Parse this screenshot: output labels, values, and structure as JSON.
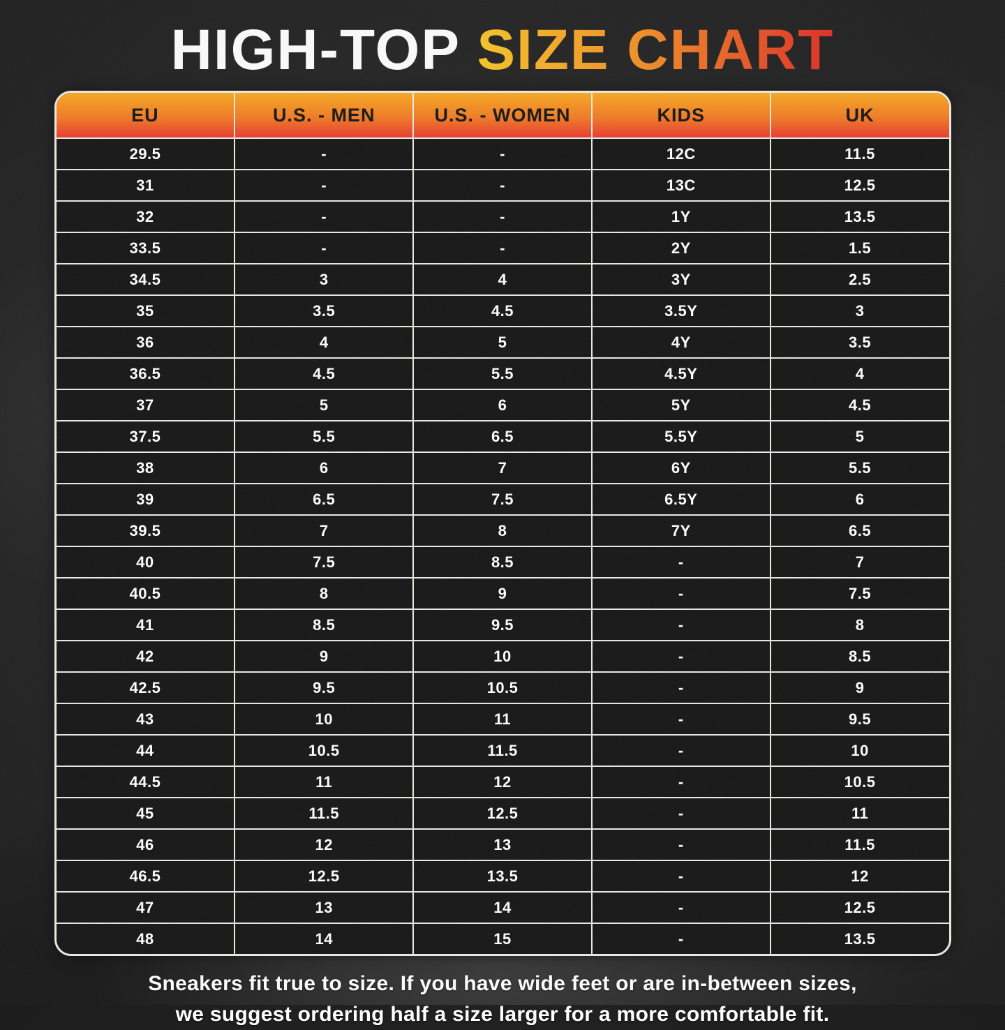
{
  "title": {
    "prefix": "HIGH-TOP ",
    "highlight": "SIZE CHART"
  },
  "table": {
    "columns": [
      "EU",
      "U.S. - MEN",
      "U.S. - WOMEN",
      "KIDS",
      "UK"
    ],
    "rows": [
      [
        "29.5",
        "-",
        "-",
        "12C",
        "11.5"
      ],
      [
        "31",
        "-",
        "-",
        "13C",
        "12.5"
      ],
      [
        "32",
        "-",
        "-",
        "1Y",
        "13.5"
      ],
      [
        "33.5",
        "-",
        "-",
        "2Y",
        "1.5"
      ],
      [
        "34.5",
        "3",
        "4",
        "3Y",
        "2.5"
      ],
      [
        "35",
        "3.5",
        "4.5",
        "3.5Y",
        "3"
      ],
      [
        "36",
        "4",
        "5",
        "4Y",
        "3.5"
      ],
      [
        "36.5",
        "4.5",
        "5.5",
        "4.5Y",
        "4"
      ],
      [
        "37",
        "5",
        "6",
        "5Y",
        "4.5"
      ],
      [
        "37.5",
        "5.5",
        "6.5",
        "5.5Y",
        "5"
      ],
      [
        "38",
        "6",
        "7",
        "6Y",
        "5.5"
      ],
      [
        "39",
        "6.5",
        "7.5",
        "6.5Y",
        "6"
      ],
      [
        "39.5",
        "7",
        "8",
        "7Y",
        "6.5"
      ],
      [
        "40",
        "7.5",
        "8.5",
        "-",
        "7"
      ],
      [
        "40.5",
        "8",
        "9",
        "-",
        "7.5"
      ],
      [
        "41",
        "8.5",
        "9.5",
        "-",
        "8"
      ],
      [
        "42",
        "9",
        "10",
        "-",
        "8.5"
      ],
      [
        "42.5",
        "9.5",
        "10.5",
        "-",
        "9"
      ],
      [
        "43",
        "10",
        "11",
        "-",
        "9.5"
      ],
      [
        "44",
        "10.5",
        "11.5",
        "-",
        "10"
      ],
      [
        "44.5",
        "11",
        "12",
        "-",
        "10.5"
      ],
      [
        "45",
        "11.5",
        "12.5",
        "-",
        "11"
      ],
      [
        "46",
        "12",
        "13",
        "-",
        "11.5"
      ],
      [
        "46.5",
        "12.5",
        "13.5",
        "-",
        "12"
      ],
      [
        "47",
        "13",
        "14",
        "-",
        "12.5"
      ],
      [
        "48",
        "14",
        "15",
        "-",
        "13.5"
      ]
    ]
  },
  "chart_data": {
    "type": "table",
    "title": "HIGH-TOP SIZE CHART",
    "columns": [
      "EU",
      "U.S. - MEN",
      "U.S. - WOMEN",
      "KIDS",
      "UK"
    ],
    "rows": [
      [
        "29.5",
        "-",
        "-",
        "12C",
        "11.5"
      ],
      [
        "31",
        "-",
        "-",
        "13C",
        "12.5"
      ],
      [
        "32",
        "-",
        "-",
        "1Y",
        "13.5"
      ],
      [
        "33.5",
        "-",
        "-",
        "2Y",
        "1.5"
      ],
      [
        "34.5",
        "3",
        "4",
        "3Y",
        "2.5"
      ],
      [
        "35",
        "3.5",
        "4.5",
        "3.5Y",
        "3"
      ],
      [
        "36",
        "4",
        "5",
        "4Y",
        "3.5"
      ],
      [
        "36.5",
        "4.5",
        "5.5",
        "4.5Y",
        "4"
      ],
      [
        "37",
        "5",
        "6",
        "5Y",
        "4.5"
      ],
      [
        "37.5",
        "5.5",
        "6.5",
        "5.5Y",
        "5"
      ],
      [
        "38",
        "6",
        "7",
        "6Y",
        "5.5"
      ],
      [
        "39",
        "6.5",
        "7.5",
        "6.5Y",
        "6"
      ],
      [
        "39.5",
        "7",
        "8",
        "7Y",
        "6.5"
      ],
      [
        "40",
        "7.5",
        "8.5",
        "-",
        "7"
      ],
      [
        "40.5",
        "8",
        "9",
        "-",
        "7.5"
      ],
      [
        "41",
        "8.5",
        "9.5",
        "-",
        "8"
      ],
      [
        "42",
        "9",
        "10",
        "-",
        "8.5"
      ],
      [
        "42.5",
        "9.5",
        "10.5",
        "-",
        "9"
      ],
      [
        "43",
        "10",
        "11",
        "-",
        "9.5"
      ],
      [
        "44",
        "10.5",
        "11.5",
        "-",
        "10"
      ],
      [
        "44.5",
        "11",
        "12",
        "-",
        "10.5"
      ],
      [
        "45",
        "11.5",
        "12.5",
        "-",
        "11"
      ],
      [
        "46",
        "12",
        "13",
        "-",
        "11.5"
      ],
      [
        "46.5",
        "12.5",
        "13.5",
        "-",
        "12"
      ],
      [
        "47",
        "13",
        "14",
        "-",
        "12.5"
      ],
      [
        "48",
        "14",
        "15",
        "-",
        "13.5"
      ]
    ]
  },
  "footer": {
    "line1": "Sneakers fit true to size. If you have wide feet or are in-between sizes,",
    "line2": "we suggest ordering half a size larger for a more comfortable fit."
  },
  "colors": {
    "header_gradient_top": "#F7A51F",
    "header_gradient_bottom": "#E9392C",
    "title_gradient_start": "#F5C427",
    "title_gradient_mid": "#F08A26",
    "title_gradient_end": "#DD2C25",
    "cell_bg": "#141414",
    "border": "#ECE9E3",
    "text": "#FFFFFF",
    "header_text": "#151515"
  }
}
